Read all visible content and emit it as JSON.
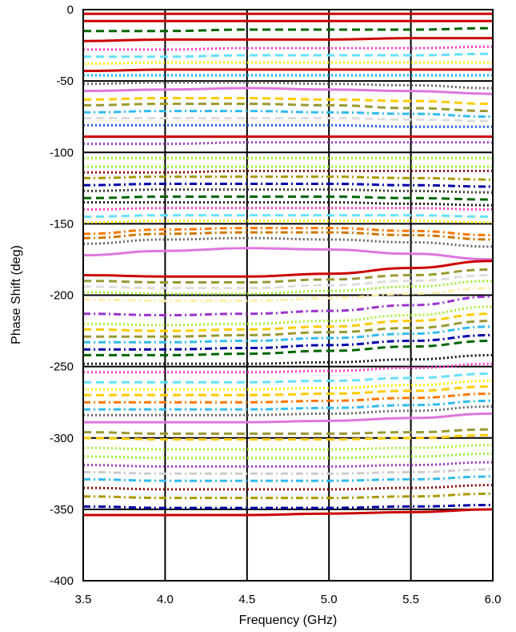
{
  "chart_data": {
    "type": "line",
    "title": "",
    "xlabel": "Frequency (GHz)",
    "ylabel": "Phase Shift (deg)",
    "xlim": [
      3.5,
      6.0
    ],
    "ylim": [
      -400,
      0
    ],
    "xticks": [
      "3.5",
      "4.0",
      "4.5",
      "5.0",
      "5.5",
      "6.0"
    ],
    "yticks": [
      "0",
      "-50",
      "-100",
      "-150",
      "-200",
      "-250",
      "-300",
      "-350",
      "-400"
    ],
    "grid": true,
    "legend": "none",
    "x": [
      3.5,
      4.0,
      4.5,
      5.0,
      5.5,
      6.0
    ],
    "series": [
      {
        "color": "#cc0000",
        "dash": "solid",
        "values": [
          -3,
          -3,
          -3,
          -3,
          -3,
          -3
        ]
      },
      {
        "color": "#cc0000",
        "dash": "solid",
        "values": [
          -8,
          -8,
          -8,
          -8,
          -8,
          -8
        ]
      },
      {
        "color": "#006600",
        "dash": "dash",
        "values": [
          -15,
          -15,
          -14,
          -14,
          -14,
          -13
        ]
      },
      {
        "color": "#cc0000",
        "dash": "solid",
        "values": [
          -22,
          -21,
          -21,
          -21,
          -20,
          -20
        ]
      },
      {
        "color": "#ff33cc",
        "dash": "dot",
        "values": [
          -28,
          -28,
          -27,
          -27,
          -27,
          -26
        ]
      },
      {
        "color": "#66e0ff",
        "dash": "dash",
        "values": [
          -33,
          -33,
          -32,
          -32,
          -32,
          -31
        ]
      },
      {
        "color": "#ffee00",
        "dash": "dot",
        "values": [
          -38,
          -37,
          -37,
          -37,
          -37,
          -37
        ]
      },
      {
        "color": "#cc0000",
        "dash": "solid",
        "values": [
          -43,
          -42,
          -42,
          -42,
          -42,
          -42
        ]
      },
      {
        "color": "#00aaff",
        "dash": "dot",
        "values": [
          -46,
          -46,
          -46,
          -46,
          -46,
          -46
        ]
      },
      {
        "color": "#666666",
        "dash": "dot",
        "values": [
          -52,
          -51,
          -51,
          -52,
          -53,
          -55
        ]
      },
      {
        "color": "#dd77dd",
        "dash": "solid",
        "values": [
          -57,
          -56,
          -55,
          -56,
          -57,
          -59
        ]
      },
      {
        "color": "#ffcc00",
        "dash": "dash",
        "values": [
          -63,
          -62,
          -62,
          -63,
          -64,
          -66
        ]
      },
      {
        "color": "#999933",
        "dash": "dash",
        "values": [
          -67,
          -66,
          -66,
          -67,
          -69,
          -71
        ]
      },
      {
        "color": "#33bbee",
        "dash": "dashdot",
        "values": [
          -72,
          -71,
          -71,
          -72,
          -73,
          -75
        ]
      },
      {
        "color": "#dddddd",
        "dash": "dash",
        "values": [
          -76,
          -76,
          -76,
          -76,
          -77,
          -78
        ]
      },
      {
        "color": "#2255dd",
        "dash": "dot",
        "values": [
          -81,
          -81,
          -81,
          -81,
          -82,
          -82
        ]
      },
      {
        "color": "#cc0000",
        "dash": "solid",
        "values": [
          -89,
          -89,
          -89,
          -89,
          -89,
          -89
        ]
      },
      {
        "color": "#9933cc",
        "dash": "dot",
        "values": [
          -94,
          -94,
          -93,
          -93,
          -93,
          -93
        ]
      },
      {
        "color": "#99ee33",
        "dash": "dot",
        "values": [
          -104,
          -104,
          -104,
          -104,
          -104,
          -104
        ]
      },
      {
        "color": "#99ee33",
        "dash": "dot",
        "values": [
          -110,
          -110,
          -110,
          -110,
          -110,
          -110
        ]
      },
      {
        "color": "#880000",
        "dash": "dot",
        "values": [
          -114,
          -114,
          -113,
          -113,
          -113,
          -113
        ]
      },
      {
        "color": "#aa9900",
        "dash": "dashdot",
        "values": [
          -118,
          -117,
          -117,
          -117,
          -118,
          -119
        ]
      },
      {
        "color": "#0000aa",
        "dash": "dashdot",
        "values": [
          -123,
          -122,
          -122,
          -122,
          -123,
          -124
        ]
      },
      {
        "color": "#333333",
        "dash": "dot",
        "values": [
          -127,
          -126,
          -126,
          -126,
          -127,
          -128
        ]
      },
      {
        "color": "#006600",
        "dash": "dash",
        "values": [
          -132,
          -131,
          -131,
          -131,
          -132,
          -133
        ]
      },
      {
        "color": "#111111",
        "dash": "dot",
        "values": [
          -135,
          -135,
          -135,
          -135,
          -136,
          -137
        ]
      },
      {
        "color": "#ff33cc",
        "dash": "dot",
        "values": [
          -140,
          -139,
          -139,
          -139,
          -139,
          -140
        ]
      },
      {
        "color": "#66e0ff",
        "dash": "dash",
        "values": [
          -145,
          -144,
          -144,
          -144,
          -144,
          -145
        ]
      },
      {
        "color": "#ffee00",
        "dash": "dot",
        "values": [
          -149,
          -148,
          -148,
          -148,
          -148,
          -149
        ]
      },
      {
        "color": "#ff7700",
        "dash": "dashdot",
        "values": [
          -157,
          -154,
          -153,
          -153,
          -155,
          -158
        ]
      },
      {
        "color": "#cc7700",
        "dash": "dashdot",
        "values": [
          -160,
          -157,
          -156,
          -156,
          -158,
          -161
        ]
      },
      {
        "color": "#666666",
        "dash": "dot",
        "values": [
          -164,
          -161,
          -160,
          -161,
          -163,
          -166
        ]
      },
      {
        "color": "#dd77dd",
        "dash": "solid",
        "values": [
          -172,
          -169,
          -167,
          -168,
          -171,
          -175
        ]
      },
      {
        "color": "#cc0000",
        "dash": "solid",
        "values": [
          -186,
          -187,
          -187,
          -185,
          -181,
          -176
        ]
      },
      {
        "color": "#999933",
        "dash": "dash",
        "values": [
          -190,
          -191,
          -191,
          -189,
          -186,
          -182
        ]
      },
      {
        "color": "#dddddd",
        "dash": "dash",
        "values": [
          -194,
          -195,
          -195,
          -193,
          -190,
          -186
        ]
      },
      {
        "color": "#99ee33",
        "dash": "dot",
        "values": [
          -198,
          -199,
          -199,
          -197,
          -194,
          -190
        ]
      },
      {
        "color": "#ffeeaa",
        "dash": "dashdot",
        "values": [
          -203,
          -204,
          -204,
          -202,
          -199,
          -195
        ]
      },
      {
        "color": "#9933cc",
        "dash": "dashdot",
        "values": [
          -213,
          -214,
          -213,
          -211,
          -207,
          -201
        ]
      },
      {
        "color": "#aaee33",
        "dash": "dot",
        "values": [
          -220,
          -221,
          -220,
          -218,
          -214,
          -208
        ]
      },
      {
        "color": "#ffcc00",
        "dash": "dash",
        "values": [
          -224,
          -225,
          -224,
          -222,
          -218,
          -213
        ]
      },
      {
        "color": "#999933",
        "dash": "dash",
        "values": [
          -229,
          -229,
          -228,
          -226,
          -223,
          -218
        ]
      },
      {
        "color": "#33bbee",
        "dash": "dashdot",
        "values": [
          -233,
          -233,
          -232,
          -230,
          -227,
          -222
        ]
      },
      {
        "color": "#0000aa",
        "dash": "dashdot",
        "values": [
          -238,
          -238,
          -237,
          -235,
          -232,
          -228
        ]
      },
      {
        "color": "#006600",
        "dash": "dash",
        "values": [
          -242,
          -242,
          -241,
          -239,
          -236,
          -232
        ]
      },
      {
        "color": "#111111",
        "dash": "dot",
        "values": [
          -248,
          -248,
          -248,
          -247,
          -245,
          -242
        ]
      },
      {
        "color": "#ff33cc",
        "dash": "dot",
        "values": [
          -254,
          -254,
          -254,
          -253,
          -251,
          -248
        ]
      },
      {
        "color": "#66e0ff",
        "dash": "dash",
        "values": [
          -261,
          -261,
          -261,
          -260,
          -258,
          -255
        ]
      },
      {
        "color": "#ffee00",
        "dash": "dot",
        "values": [
          -266,
          -266,
          -266,
          -265,
          -263,
          -260
        ]
      },
      {
        "color": "#ffcc00",
        "dash": "dash",
        "values": [
          -270,
          -270,
          -270,
          -269,
          -267,
          -264
        ]
      },
      {
        "color": "#ff7700",
        "dash": "dashdot",
        "values": [
          -275,
          -275,
          -275,
          -274,
          -272,
          -269
        ]
      },
      {
        "color": "#33bbee",
        "dash": "dashdot",
        "values": [
          -280,
          -280,
          -280,
          -279,
          -277,
          -274
        ]
      },
      {
        "color": "#666666",
        "dash": "dot",
        "values": [
          -284,
          -284,
          -284,
          -283,
          -281,
          -278
        ]
      },
      {
        "color": "#dd77dd",
        "dash": "solid",
        "values": [
          -289,
          -289,
          -289,
          -288,
          -286,
          -283
        ]
      },
      {
        "color": "#999933",
        "dash": "dash",
        "values": [
          -296,
          -297,
          -297,
          -297,
          -296,
          -294
        ]
      },
      {
        "color": "#ffcc00",
        "dash": "dash",
        "values": [
          -300,
          -301,
          -301,
          -301,
          -300,
          -298
        ]
      },
      {
        "color": "#aaee33",
        "dash": "dot",
        "values": [
          -307,
          -308,
          -308,
          -308,
          -307,
          -305
        ]
      },
      {
        "color": "#99ee33",
        "dash": "dot",
        "values": [
          -313,
          -314,
          -314,
          -314,
          -313,
          -311
        ]
      },
      {
        "color": "#9933cc",
        "dash": "dot",
        "values": [
          -319,
          -320,
          -320,
          -320,
          -319,
          -317
        ]
      },
      {
        "color": "#cccccc",
        "dash": "dashdot",
        "values": [
          -324,
          -325,
          -325,
          -325,
          -324,
          -322
        ]
      },
      {
        "color": "#33bbee",
        "dash": "dashdot",
        "values": [
          -329,
          -330,
          -330,
          -330,
          -329,
          -327
        ]
      },
      {
        "color": "#880000",
        "dash": "dot",
        "values": [
          -335,
          -336,
          -336,
          -336,
          -335,
          -333
        ]
      },
      {
        "color": "#aa9900",
        "dash": "dashdot",
        "values": [
          -341,
          -342,
          -342,
          -342,
          -341,
          -339
        ]
      },
      {
        "color": "#0000aa",
        "dash": "dashdot",
        "values": [
          -348,
          -349,
          -349,
          -349,
          -348,
          -347
        ]
      },
      {
        "color": "#cc0000",
        "dash": "solid",
        "values": [
          -354,
          -354,
          -354,
          -353,
          -352,
          -350
        ]
      }
    ]
  }
}
